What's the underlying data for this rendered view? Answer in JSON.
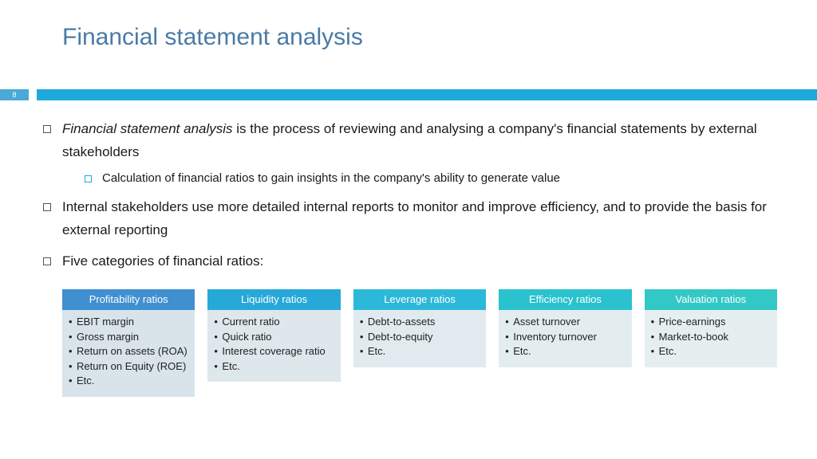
{
  "page": {
    "title": "Financial statement analysis",
    "number": "8",
    "colors": {
      "title": "#4a7ba6",
      "stripe": "#1fa8dc",
      "badge_bg": "#4aa9d6",
      "text": "#1a1a1a"
    }
  },
  "bullets": [
    {
      "lead_italic": "Financial statement analysis",
      "rest": " is the process of reviewing and analysing a company's financial statements by external stakeholders",
      "sub": [
        "Calculation of financial ratios to gain insights in the company's ability to generate value"
      ]
    },
    {
      "text": "Internal stakeholders use more detailed internal reports to monitor and improve efficiency, and to provide the basis for external reporting"
    },
    {
      "text": "Five categories of financial ratios:"
    }
  ],
  "cards": [
    {
      "title": "Profitability ratios",
      "header_bg": "#3f8fd1",
      "body_bg": "#d8e3ea",
      "items": [
        "EBIT margin",
        "Gross margin",
        "Return on assets (ROA)",
        "Return on Equity (ROE)",
        "Etc."
      ]
    },
    {
      "title": "Liquidity ratios",
      "header_bg": "#26a8d9",
      "body_bg": "#dde7ec",
      "items": [
        "Current ratio",
        "Quick ratio",
        "Interest coverage ratio",
        "Etc."
      ]
    },
    {
      "title": "Leverage ratios",
      "header_bg": "#2cb8d9",
      "body_bg": "#e1eaee",
      "items": [
        "Debt-to-assets",
        "Debt-to-equity",
        "Etc."
      ]
    },
    {
      "title": "Efficiency ratios",
      "header_bg": "#29c2ce",
      "body_bg": "#e3edef",
      "items": [
        "Asset turnover",
        "Inventory turnover",
        "Etc."
      ]
    },
    {
      "title": "Valuation ratios",
      "header_bg": "#32c8c6",
      "body_bg": "#e6efef",
      "items": [
        "Price-earnings",
        "Market-to-book",
        "Etc."
      ]
    }
  ]
}
